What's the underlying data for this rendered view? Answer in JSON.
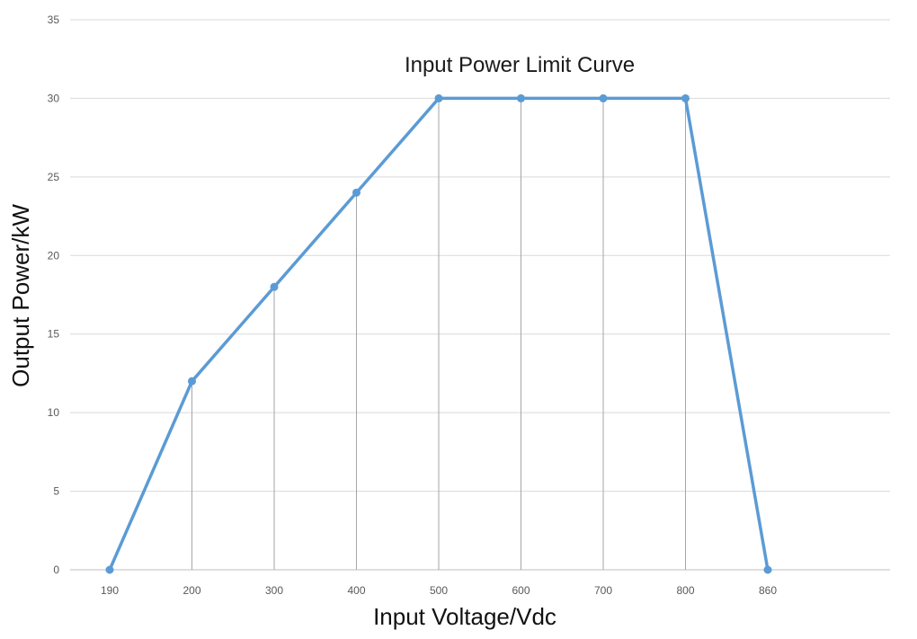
{
  "chart_data": {
    "type": "line",
    "title": "Input Power Limit Curve",
    "xlabel": "Input Voltage/Vdc",
    "ylabel": "Output Power/kW",
    "categories": [
      "190",
      "200",
      "300",
      "400",
      "500",
      "600",
      "700",
      "800",
      "860"
    ],
    "series": [
      {
        "values": [
          0,
          12,
          18,
          24,
          30,
          30,
          30,
          30,
          0
        ],
        "color": "#5b9bd5"
      }
    ],
    "ylim": [
      0,
      35
    ],
    "yticks": [
      "0",
      "5",
      "10",
      "15",
      "20",
      "25",
      "30",
      "35"
    ],
    "grid": true,
    "drop_lines": true,
    "legend": "none"
  }
}
